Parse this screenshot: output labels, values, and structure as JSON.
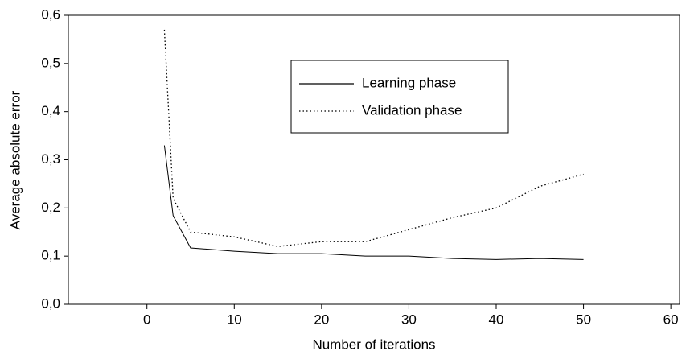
{
  "chart_data": {
    "type": "line",
    "x_label": "Number of iterations",
    "y_label": "Average absolute error",
    "xlim": [
      -9,
      61
    ],
    "ylim": [
      0,
      0.6
    ],
    "xticks": [
      0,
      10,
      20,
      30,
      40,
      50,
      60
    ],
    "yticks": [
      {
        "value": 0,
        "label": "0,0"
      },
      {
        "value": 0.1,
        "label": "0,1"
      },
      {
        "value": 0.2,
        "label": "0,2"
      },
      {
        "value": 0.3,
        "label": "0,3"
      },
      {
        "value": 0.4,
        "label": "0,4"
      },
      {
        "value": 0.5,
        "label": "0,5"
      },
      {
        "value": 0.6,
        "label": "0,6"
      }
    ],
    "x": [
      2,
      3,
      5,
      10,
      15,
      20,
      25,
      30,
      35,
      40,
      45,
      50
    ],
    "series": [
      {
        "name": "Learning phase",
        "color": "#000000",
        "dash": "solid",
        "values": [
          0.33,
          0.184,
          0.117,
          0.11,
          0.105,
          0.105,
          0.1,
          0.1,
          0.095,
          0.093,
          0.095,
          0.093
        ]
      },
      {
        "name": "Validation phase",
        "color": "#000000",
        "dash": "dotted",
        "values": [
          0.57,
          0.22,
          0.15,
          0.14,
          0.12,
          0.13,
          0.13,
          0.155,
          0.18,
          0.2,
          0.245,
          0.27
        ]
      }
    ],
    "legend": "upper-center"
  }
}
